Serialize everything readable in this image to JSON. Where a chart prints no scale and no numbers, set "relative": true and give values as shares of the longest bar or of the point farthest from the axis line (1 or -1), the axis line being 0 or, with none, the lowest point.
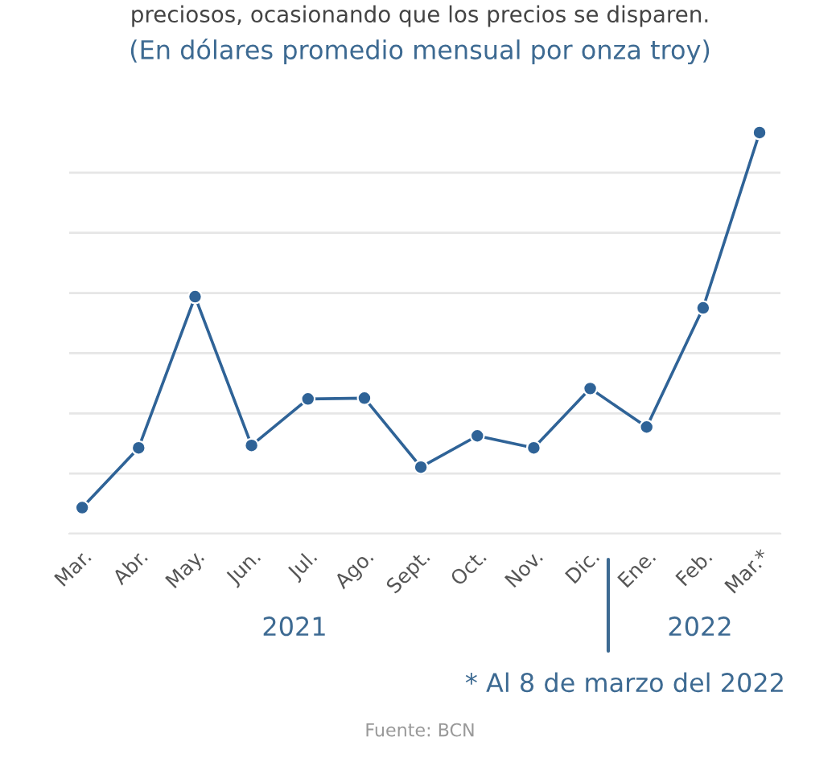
{
  "chart_data": {
    "type": "line",
    "title": "preciosos, ocasionando que los precios se disparen.",
    "subtitle": "(En dólares promedio mensual por onza troy)",
    "categories": [
      "Mar.",
      "Abr.",
      "May.",
      "Jun.",
      "Jul.",
      "Ago.",
      "Sept.",
      "Oct.",
      "Nov.",
      "Dic.",
      "Ene.",
      "Feb.",
      "Mar.*"
    ],
    "series": [
      {
        "color": "#2f6397",
        "values": [
          0.065,
          0.214,
          0.591,
          0.22,
          0.336,
          0.338,
          0.166,
          0.244,
          0.214,
          0.362,
          0.266,
          0.563,
          1
        ]
      }
    ],
    "relative": true,
    "grid": "y",
    "marker": "circle",
    "line_style": "solid",
    "annotations": [
      "2021",
      "2022",
      "* Al 8 de marzo del 2022",
      "Fuente: BCN"
    ]
  }
}
